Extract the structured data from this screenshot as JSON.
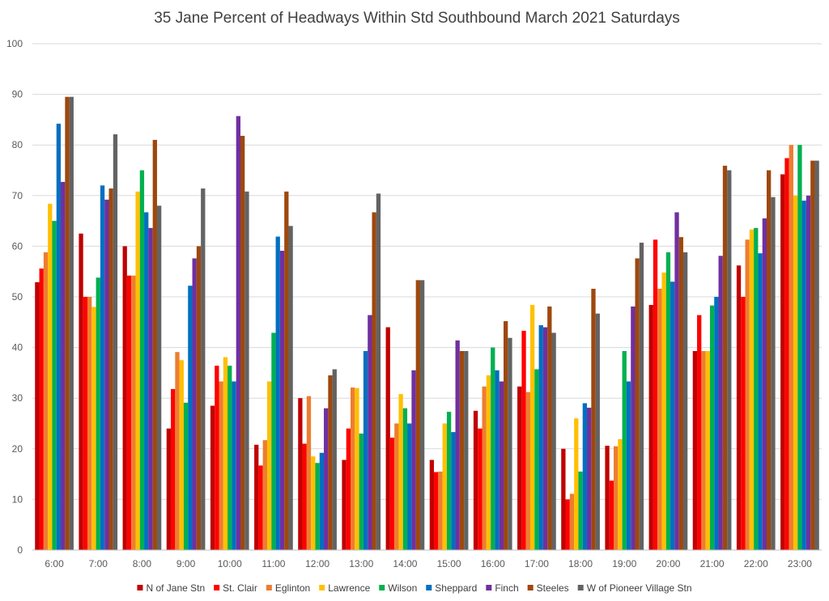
{
  "chart_data": {
    "type": "bar",
    "title": "35 Jane  Percent of Headways Within Std Southbound March 2021 Saturdays",
    "xlabel": "",
    "ylabel": "",
    "ylim": [
      0,
      100
    ],
    "yticks": [
      0,
      10,
      20,
      30,
      40,
      50,
      60,
      70,
      80,
      90,
      100
    ],
    "grid": true,
    "legend_position": "bottom",
    "categories": [
      "6:00",
      "7:00",
      "8:00",
      "9:00",
      "10:00",
      "11:00",
      "12:00",
      "13:00",
      "14:00",
      "15:00",
      "16:00",
      "17:00",
      "18:00",
      "19:00",
      "20:00",
      "21:00",
      "22:00",
      "23:00"
    ],
    "series": [
      {
        "name": "N of Jane Stn",
        "color": "#C00000",
        "values": [
          52.9,
          62.5,
          60.0,
          24.0,
          28.5,
          20.8,
          30.0,
          17.8,
          44.0,
          17.8,
          27.5,
          32.3,
          20.0,
          20.6,
          48.4,
          39.3,
          56.2,
          74.2
        ]
      },
      {
        "name": "St. Clair",
        "color": "#FF0000",
        "values": [
          55.6,
          50.0,
          54.2,
          31.8,
          36.4,
          16.7,
          21.0,
          24.0,
          22.2,
          15.4,
          24.0,
          43.3,
          10.0,
          13.7,
          61.3,
          46.4,
          50.0,
          77.4
        ]
      },
      {
        "name": "Eglinton",
        "color": "#ED7D31",
        "values": [
          58.8,
          50.0,
          54.2,
          39.1,
          33.3,
          21.7,
          30.4,
          32.1,
          25.0,
          15.5,
          32.3,
          31.2,
          11.1,
          20.5,
          51.6,
          39.3,
          61.3,
          80.0
        ]
      },
      {
        "name": "Lawrence",
        "color": "#FFC000",
        "values": [
          68.4,
          48.0,
          70.8,
          37.5,
          38.1,
          33.3,
          18.5,
          32.0,
          30.8,
          25.0,
          34.5,
          48.4,
          26.0,
          21.9,
          54.8,
          39.3,
          63.3,
          70.0
        ]
      },
      {
        "name": "Wilson",
        "color": "#00B050",
        "values": [
          65.0,
          53.8,
          75.0,
          29.1,
          36.4,
          42.9,
          17.2,
          23.0,
          28.0,
          27.3,
          40.0,
          35.7,
          15.5,
          39.3,
          58.8,
          48.3,
          63.6,
          80.0
        ]
      },
      {
        "name": "Sheppard",
        "color": "#0070C0",
        "values": [
          84.2,
          72.0,
          66.7,
          52.2,
          33.3,
          61.9,
          19.2,
          39.3,
          25.0,
          23.3,
          35.5,
          44.4,
          29.0,
          33.3,
          53.0,
          50.0,
          58.6,
          69.0
        ]
      },
      {
        "name": "Finch",
        "color": "#7030A0",
        "values": [
          72.7,
          69.2,
          63.6,
          57.6,
          85.7,
          59.1,
          28.0,
          46.4,
          35.5,
          41.4,
          33.3,
          44.0,
          28.1,
          48.1,
          66.7,
          58.1,
          65.5,
          70.0
        ]
      },
      {
        "name": "Steeles",
        "color": "#9E480E",
        "values": [
          89.5,
          71.4,
          81.0,
          60.0,
          81.8,
          70.8,
          34.5,
          66.7,
          53.3,
          39.3,
          45.2,
          48.1,
          51.6,
          57.6,
          61.8,
          75.9,
          75.0,
          76.9
        ]
      },
      {
        "name": "W of Pioneer Village Stn",
        "color": "#636363",
        "values": [
          89.5,
          82.1,
          68.0,
          71.4,
          70.8,
          64.0,
          35.7,
          70.4,
          53.3,
          39.3,
          41.9,
          42.9,
          46.7,
          60.7,
          58.8,
          75.0,
          69.7,
          76.9
        ]
      }
    ]
  }
}
